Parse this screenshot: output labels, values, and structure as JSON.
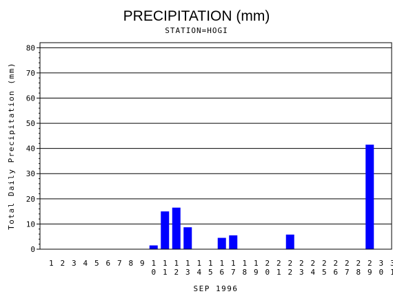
{
  "chart_data": {
    "type": "bar",
    "title": "PRECIPITATION (mm)",
    "subtitle": "STATION=HOGI",
    "xlabel": "SEP 1996",
    "ylabel": "Total Daily Precipitation (mm)",
    "ylim": [
      0,
      82
    ],
    "yticks": [
      0,
      10,
      20,
      30,
      40,
      50,
      60,
      70,
      80
    ],
    "grid": true,
    "bar_color": "#0000ff",
    "categories": [
      "1",
      "2",
      "3",
      "4",
      "5",
      "6",
      "7",
      "8",
      "9",
      "10",
      "11",
      "12",
      "13",
      "14",
      "15",
      "16",
      "17",
      "18",
      "19",
      "20",
      "21",
      "22",
      "23",
      "24",
      "25",
      "26",
      "27",
      "28",
      "29",
      "30",
      "31"
    ],
    "values": [
      0,
      0,
      0,
      0,
      0,
      0,
      0,
      0,
      0,
      1.5,
      15,
      16.5,
      8.7,
      0,
      0,
      4.5,
      5.5,
      0,
      0,
      0,
      0,
      5.8,
      0,
      0,
      0,
      0,
      0,
      0,
      41.5,
      0,
      0
    ]
  }
}
